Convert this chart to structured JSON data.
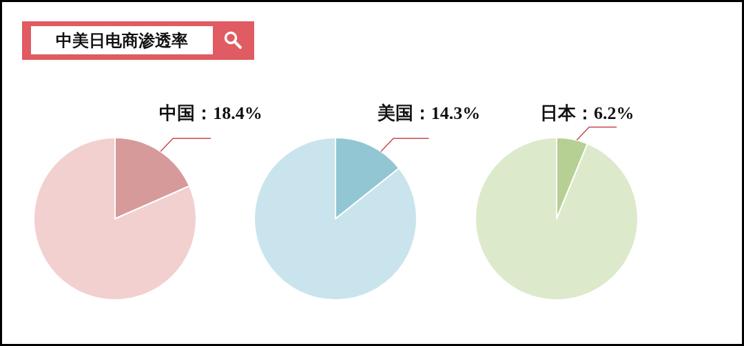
{
  "chart_data": [
    {
      "type": "pie",
      "title": "中美日电商渗透率",
      "categories": [
        null,
        null
      ],
      "values": [
        18.4,
        81.6
      ],
      "colors": [
        "#d69a9a",
        "#f2d0d0"
      ],
      "value_labels": [
        "中国：18.4%",
        null
      ]
    },
    {
      "type": "pie",
      "categories": [
        null,
        null
      ],
      "values": [
        14.3,
        85.7
      ],
      "colors": [
        "#92c6d3",
        "#c9e4ec"
      ],
      "value_labels": [
        "美国：14.3%",
        null
      ]
    },
    {
      "type": "pie",
      "categories": [
        null,
        null
      ],
      "values": [
        6.2,
        93.8
      ],
      "colors": [
        "#b6cf92",
        "#dde9cb"
      ],
      "value_labels": [
        "日本：6.2%",
        null
      ]
    }
  ]
}
